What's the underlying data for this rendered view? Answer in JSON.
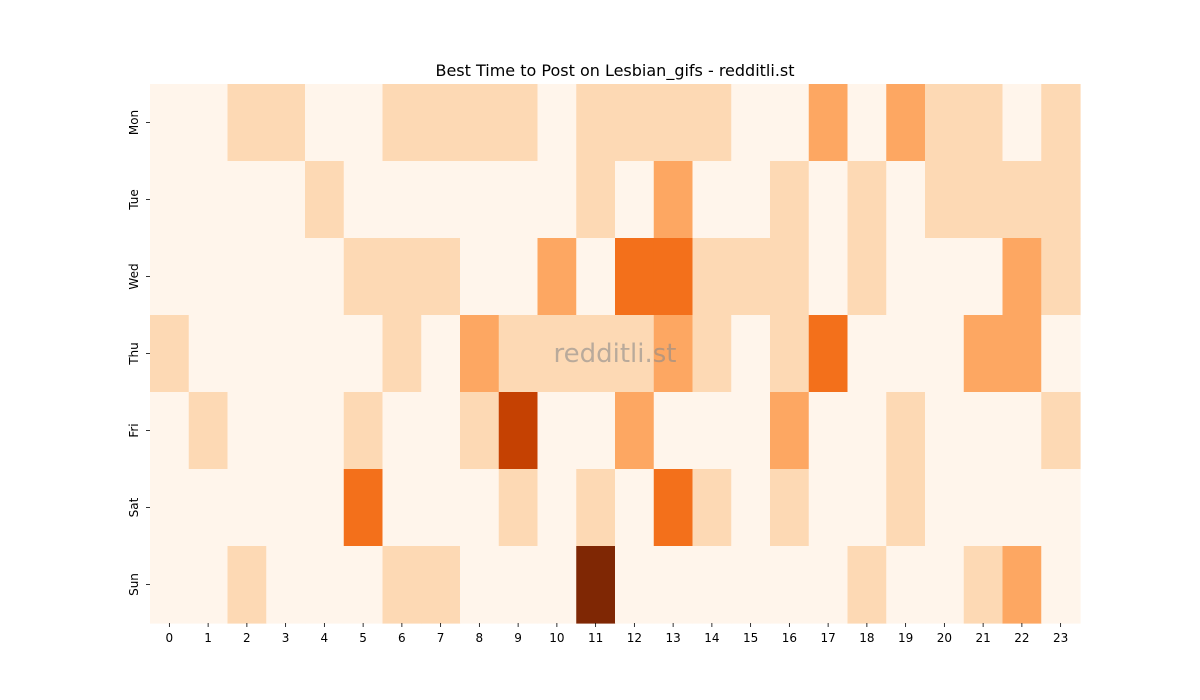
{
  "chart_data": {
    "type": "heatmap",
    "title": "Best Time to Post on Lesbian_gifs - redditli.st",
    "xlabel": "",
    "ylabel": "",
    "x_categories": [
      "0",
      "1",
      "2",
      "3",
      "4",
      "5",
      "6",
      "7",
      "8",
      "9",
      "10",
      "11",
      "12",
      "13",
      "14",
      "15",
      "16",
      "17",
      "18",
      "19",
      "20",
      "21",
      "22",
      "23"
    ],
    "y_categories": [
      "Mon",
      "Tue",
      "Wed",
      "Thu",
      "Fri",
      "Sat",
      "Sun"
    ],
    "value_range": [
      0,
      6
    ],
    "colormap": [
      "#fff5eb",
      "#fdd9b4",
      "#fda762",
      "#f3701b",
      "#f3701b",
      "#c54102",
      "#7f2704"
    ],
    "grid": false,
    "legend": "none",
    "values": [
      [
        0,
        0,
        1,
        1,
        0,
        0,
        1,
        1,
        1,
        1,
        0,
        1,
        1,
        1,
        1,
        0,
        0,
        2,
        0,
        2,
        1,
        1,
        0,
        1
      ],
      [
        0,
        0,
        0,
        0,
        1,
        0,
        0,
        0,
        0,
        0,
        0,
        1,
        0,
        2,
        0,
        0,
        1,
        0,
        1,
        0,
        1,
        1,
        1,
        1
      ],
      [
        0,
        0,
        0,
        0,
        0,
        1,
        1,
        1,
        0,
        0,
        2,
        0,
        3,
        3,
        1,
        1,
        1,
        0,
        1,
        0,
        0,
        0,
        2,
        1
      ],
      [
        1,
        0,
        0,
        0,
        0,
        0,
        1,
        0,
        2,
        1,
        1,
        1,
        1,
        2,
        1,
        0,
        1,
        3,
        0,
        0,
        0,
        2,
        2,
        0
      ],
      [
        0,
        1,
        0,
        0,
        0,
        1,
        0,
        0,
        1,
        5,
        0,
        0,
        2,
        0,
        0,
        0,
        2,
        0,
        0,
        1,
        0,
        0,
        0,
        1
      ],
      [
        0,
        0,
        0,
        0,
        0,
        3,
        0,
        0,
        0,
        1,
        0,
        1,
        0,
        3,
        1,
        0,
        1,
        0,
        0,
        1,
        0,
        0,
        0,
        0
      ],
      [
        0,
        0,
        1,
        0,
        0,
        0,
        1,
        1,
        0,
        0,
        0,
        6,
        0,
        0,
        0,
        0,
        0,
        0,
        1,
        0,
        0,
        1,
        2,
        0
      ]
    ]
  },
  "watermark": "redditli.st"
}
